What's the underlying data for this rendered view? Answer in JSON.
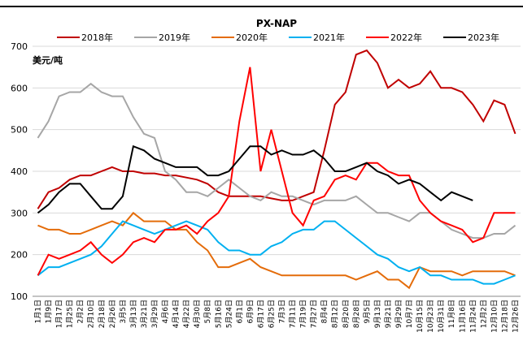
{
  "chart_data": {
    "type": "line",
    "title": "PX-NAP",
    "y_label": "美元/吨",
    "categories": [
      "1月1日",
      "1月9日",
      "1月17日",
      "1月25日",
      "2月2日",
      "2月10日",
      "2月18日",
      "2月26日",
      "3月5日",
      "3月13日",
      "3月21日",
      "3月29日",
      "4月6日",
      "4月14日",
      "4月22日",
      "4月30日",
      "5月8日",
      "5月16日",
      "5月24日",
      "6月1日",
      "6月9日",
      "6月17日",
      "6月25日",
      "7月3日",
      "7月11日",
      "7月19日",
      "7月27日",
      "8月4日",
      "8月12日",
      "8月20日",
      "8月28日",
      "9月5日",
      "9月13日",
      "9月21日",
      "9月29日",
      "10月7日",
      "10月15日",
      "10月23日",
      "10月31日",
      "11月8日",
      "11月16日",
      "11月24日",
      "12月2日",
      "12月10日",
      "12月18日",
      "12月26日"
    ],
    "series": [
      {
        "name": "2018年",
        "color": "#c00000",
        "values": [
          310,
          350,
          360,
          380,
          390,
          390,
          400,
          410,
          400,
          400,
          395,
          395,
          390,
          390,
          385,
          380,
          370,
          350,
          340,
          340,
          340,
          340,
          335,
          330,
          330,
          340,
          350,
          450,
          560,
          590,
          680,
          690,
          660,
          600,
          620,
          600,
          610,
          640,
          600,
          600,
          590,
          560,
          520,
          570,
          560,
          490
        ]
      },
      {
        "name": "2019年",
        "color": "#a6a6a6",
        "values": [
          480,
          520,
          580,
          590,
          590,
          610,
          590,
          580,
          580,
          530,
          490,
          480,
          400,
          380,
          350,
          350,
          340,
          360,
          380,
          360,
          340,
          330,
          350,
          340,
          340,
          330,
          320,
          330,
          330,
          330,
          340,
          320,
          300,
          300,
          290,
          280,
          300,
          300,
          280,
          260,
          250,
          240,
          240,
          250,
          250,
          270
        ]
      },
      {
        "name": "2020年",
        "color": "#e46c0a",
        "values": [
          270,
          260,
          260,
          250,
          250,
          260,
          270,
          280,
          270,
          300,
          280,
          280,
          280,
          260,
          260,
          230,
          210,
          170,
          170,
          180,
          190,
          170,
          160,
          150,
          150,
          150,
          150,
          150,
          150,
          150,
          140,
          150,
          160,
          140,
          140,
          120,
          170,
          160,
          160,
          160,
          150,
          160,
          160,
          160,
          160,
          150
        ]
      },
      {
        "name": "2021年",
        "color": "#00b0f0",
        "values": [
          150,
          170,
          170,
          180,
          190,
          200,
          220,
          250,
          280,
          270,
          260,
          250,
          260,
          270,
          280,
          270,
          260,
          230,
          210,
          210,
          200,
          200,
          220,
          230,
          250,
          260,
          260,
          280,
          280,
          260,
          240,
          220,
          200,
          190,
          170,
          160,
          170,
          150,
          150,
          140,
          140,
          140,
          130,
          130,
          140,
          150
        ]
      },
      {
        "name": "2022年",
        "color": "#ff0000",
        "values": [
          150,
          200,
          190,
          200,
          210,
          230,
          200,
          180,
          200,
          230,
          240,
          230,
          260,
          260,
          270,
          250,
          280,
          300,
          340,
          520,
          650,
          400,
          500,
          400,
          300,
          270,
          330,
          340,
          380,
          390,
          380,
          420,
          420,
          400,
          390,
          390,
          330,
          300,
          280,
          270,
          260,
          230,
          240,
          300,
          300,
          300
        ]
      },
      {
        "name": "2023年",
        "color": "#000000",
        "values": [
          300,
          320,
          350,
          370,
          370,
          340,
          310,
          310,
          340,
          460,
          450,
          430,
          420,
          410,
          410,
          410,
          390,
          390,
          400,
          430,
          460,
          460,
          440,
          450,
          440,
          440,
          450,
          430,
          400,
          400,
          410,
          420,
          400,
          390,
          370,
          380,
          370,
          350,
          330,
          350,
          340,
          330,
          null,
          null,
          null,
          null
        ]
      }
    ],
    "ylim": [
      100,
      700
    ],
    "yticks": [
      100,
      200,
      300,
      400,
      500,
      600,
      700
    ],
    "grid": true
  }
}
